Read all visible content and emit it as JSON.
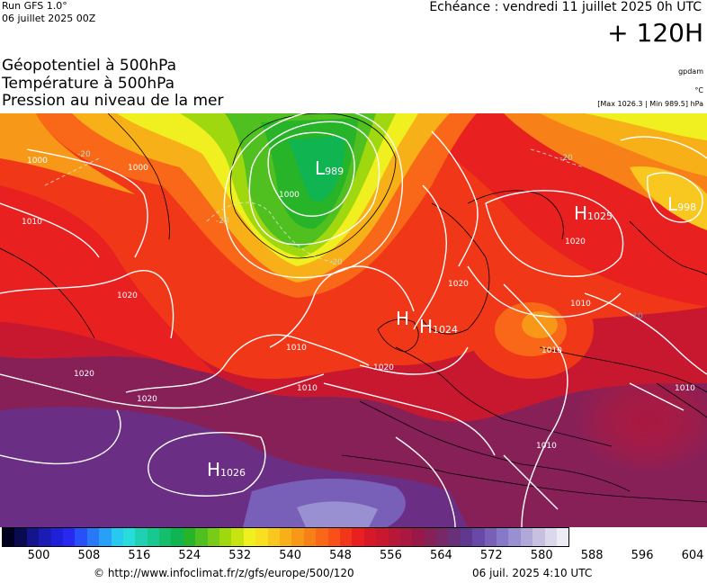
{
  "header": {
    "run": "Run GFS 1.0°",
    "run_date": "06 juillet 2025 00Z",
    "valid": "Echéance : vendredi 11 juillet 2025 0h UTC",
    "lead": "+ 120H",
    "title1": "Géopotentiel à 500hPa",
    "title2": "Température à 500hPa",
    "title3": "Pression au niveau de la mer",
    "unit_geo": "gpdam",
    "unit_temp": "°C",
    "pressure_range": "[Max 1026.3 | Min 989.5] hPa"
  },
  "map": {
    "pressure_centers": [
      {
        "type": "L",
        "value": "989"
      },
      {
        "type": "H",
        "value": "1025"
      },
      {
        "type": "L",
        "value": "998"
      },
      {
        "type": "H",
        "value": "1024"
      },
      {
        "type": "H",
        "value": "1026"
      }
    ],
    "isobar_labels": [
      "1000",
      "1000",
      "1000",
      "1010",
      "1020",
      "1020",
      "1010",
      "1020",
      "1020",
      "1010",
      "1020",
      "1010",
      "1010",
      "1010",
      "1010",
      "1020"
    ],
    "temp_labels": [
      "-20",
      "-20",
      "-20",
      "-20",
      "-10"
    ]
  },
  "scale": {
    "colors": [
      "#000020",
      "#0a0a50",
      "#14148c",
      "#1c1cb4",
      "#2020d8",
      "#2828f0",
      "#2850f8",
      "#2878f8",
      "#28a0f8",
      "#28c8f0",
      "#28dcdc",
      "#20d0b4",
      "#18c890",
      "#14be6c",
      "#10b450",
      "#28b428",
      "#50c020",
      "#78cc18",
      "#a0d810",
      "#c8e410",
      "#f0f020",
      "#f8e020",
      "#f8c820",
      "#f8b018",
      "#f89818",
      "#f88018",
      "#f86818",
      "#f85018",
      "#f03818",
      "#e82020",
      "#d81828",
      "#c81830",
      "#b81838",
      "#a81840",
      "#981848",
      "#882058",
      "#782868",
      "#683078",
      "#603890",
      "#6848a8",
      "#7860b8",
      "#8878c8",
      "#9890d0",
      "#b0a8d8",
      "#c8c0e0",
      "#dcd8ec",
      "#ececf4"
    ],
    "ticks": [
      "500",
      "508",
      "516",
      "524",
      "532",
      "540",
      "548",
      "556",
      "564",
      "572",
      "580",
      "588",
      "596",
      "604"
    ]
  },
  "footer": {
    "source": "© http://www.infoclimat.fr/z/gfs/europe/500/120",
    "generated": "06 juil. 2025  4:10 UTC"
  }
}
